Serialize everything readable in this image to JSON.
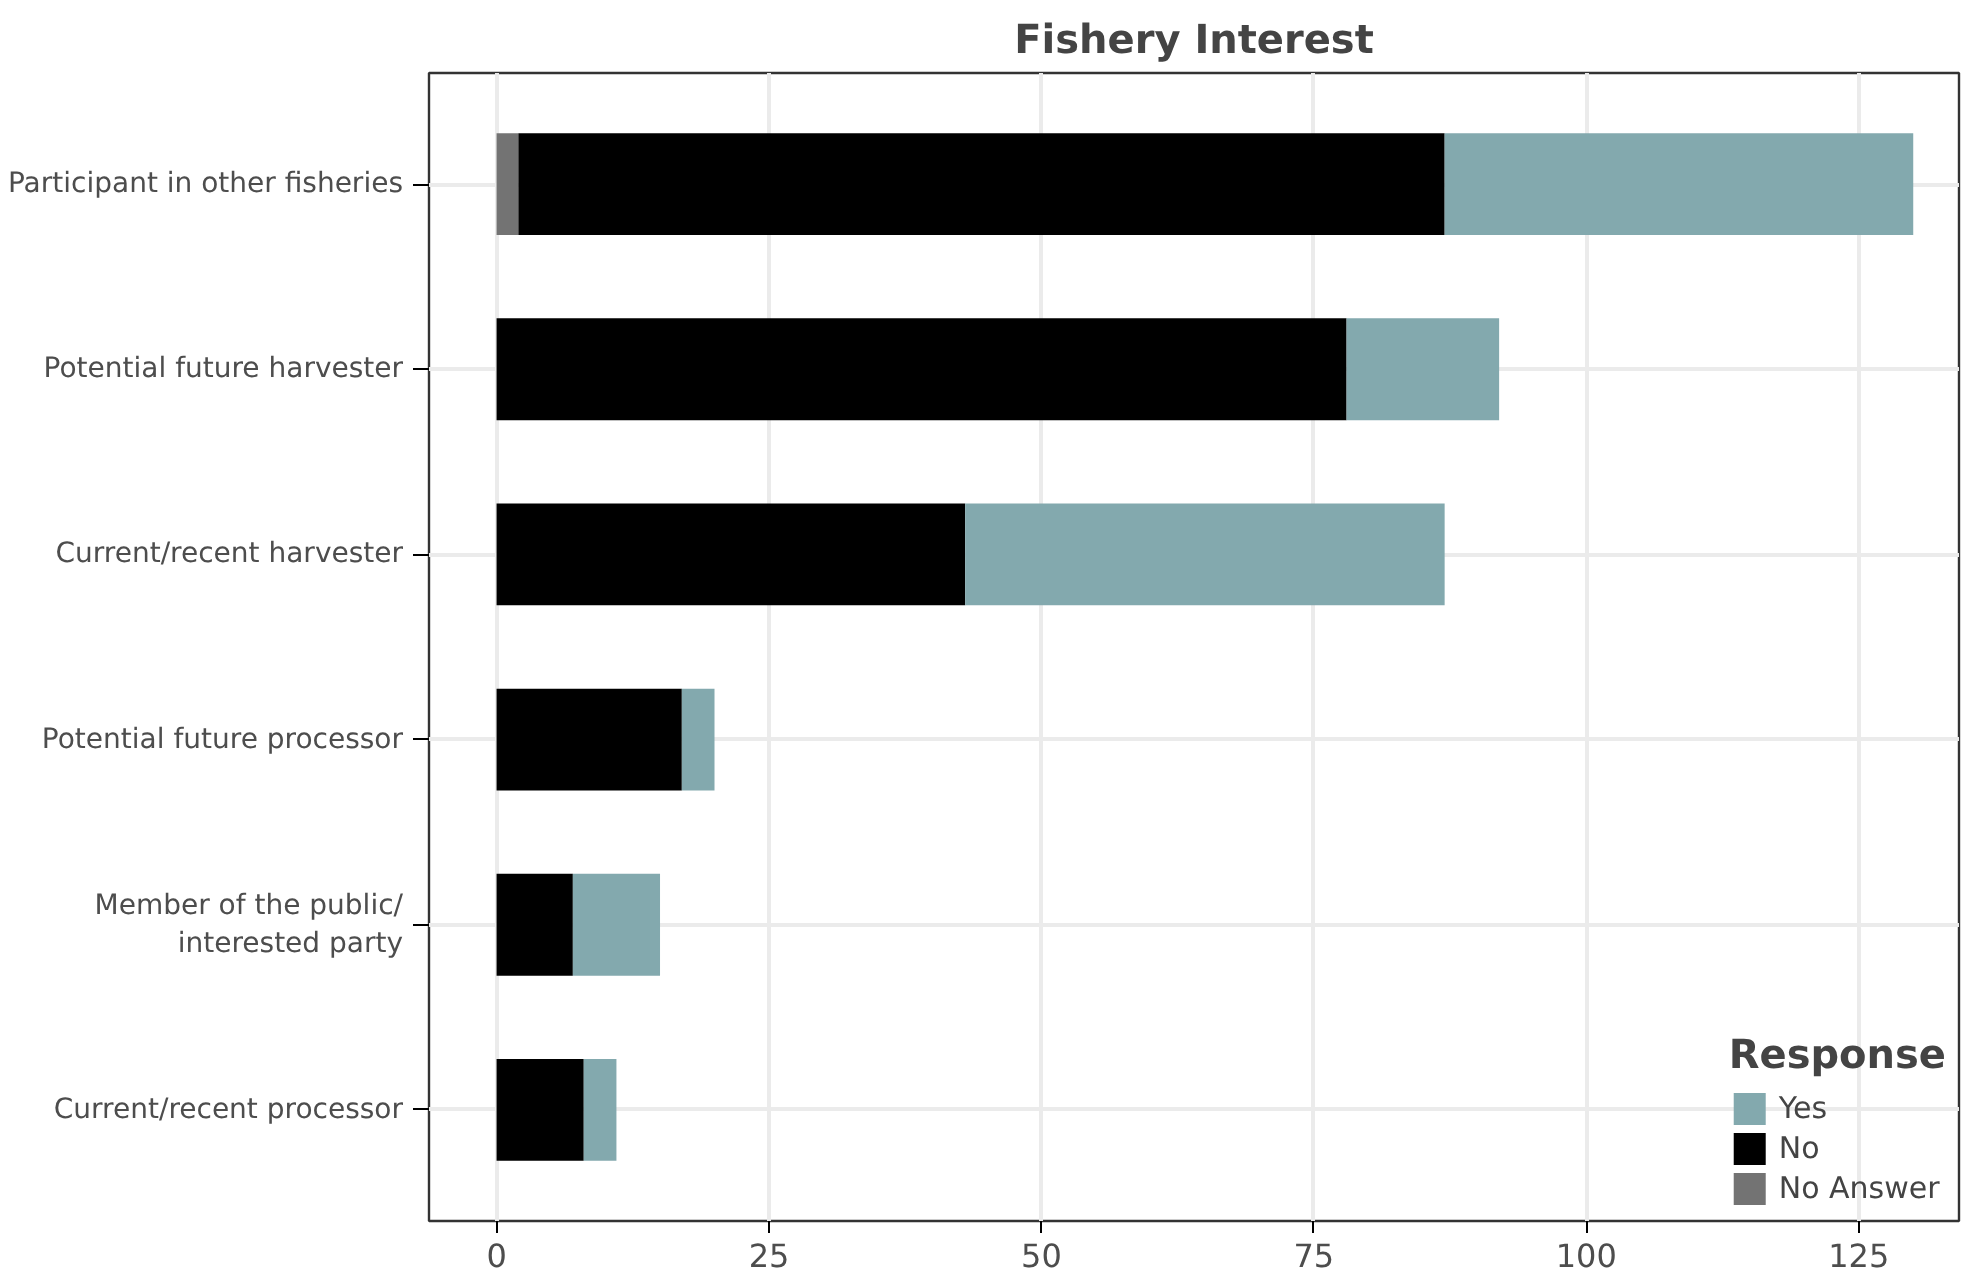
{
  "chart_data": {
    "type": "bar",
    "orientation": "horizontal",
    "stacked": true,
    "title": "Fishery Interest",
    "legend_title": "Response",
    "legend": "bottom right",
    "grid": true,
    "categories": [
      "Participant in other fisheries",
      "Potential future harvester",
      "Current/recent harvester",
      "Potential future processor",
      "Member of the public/\ninterested party",
      "Current/recent processor"
    ],
    "series": [
      {
        "name": "No Answer",
        "color": "#737373",
        "values": [
          2,
          null,
          null,
          null,
          null,
          null
        ]
      },
      {
        "name": "No",
        "color": "#000000",
        "values": [
          85,
          78,
          43,
          17,
          7,
          8
        ]
      },
      {
        "name": "Yes",
        "color": "#83a9ae",
        "values": [
          43,
          14,
          44,
          3,
          8,
          3
        ]
      }
    ],
    "xlim": [
      -6.2,
      134.2
    ],
    "xticks": [
      0,
      25,
      50,
      75,
      100,
      125
    ]
  }
}
